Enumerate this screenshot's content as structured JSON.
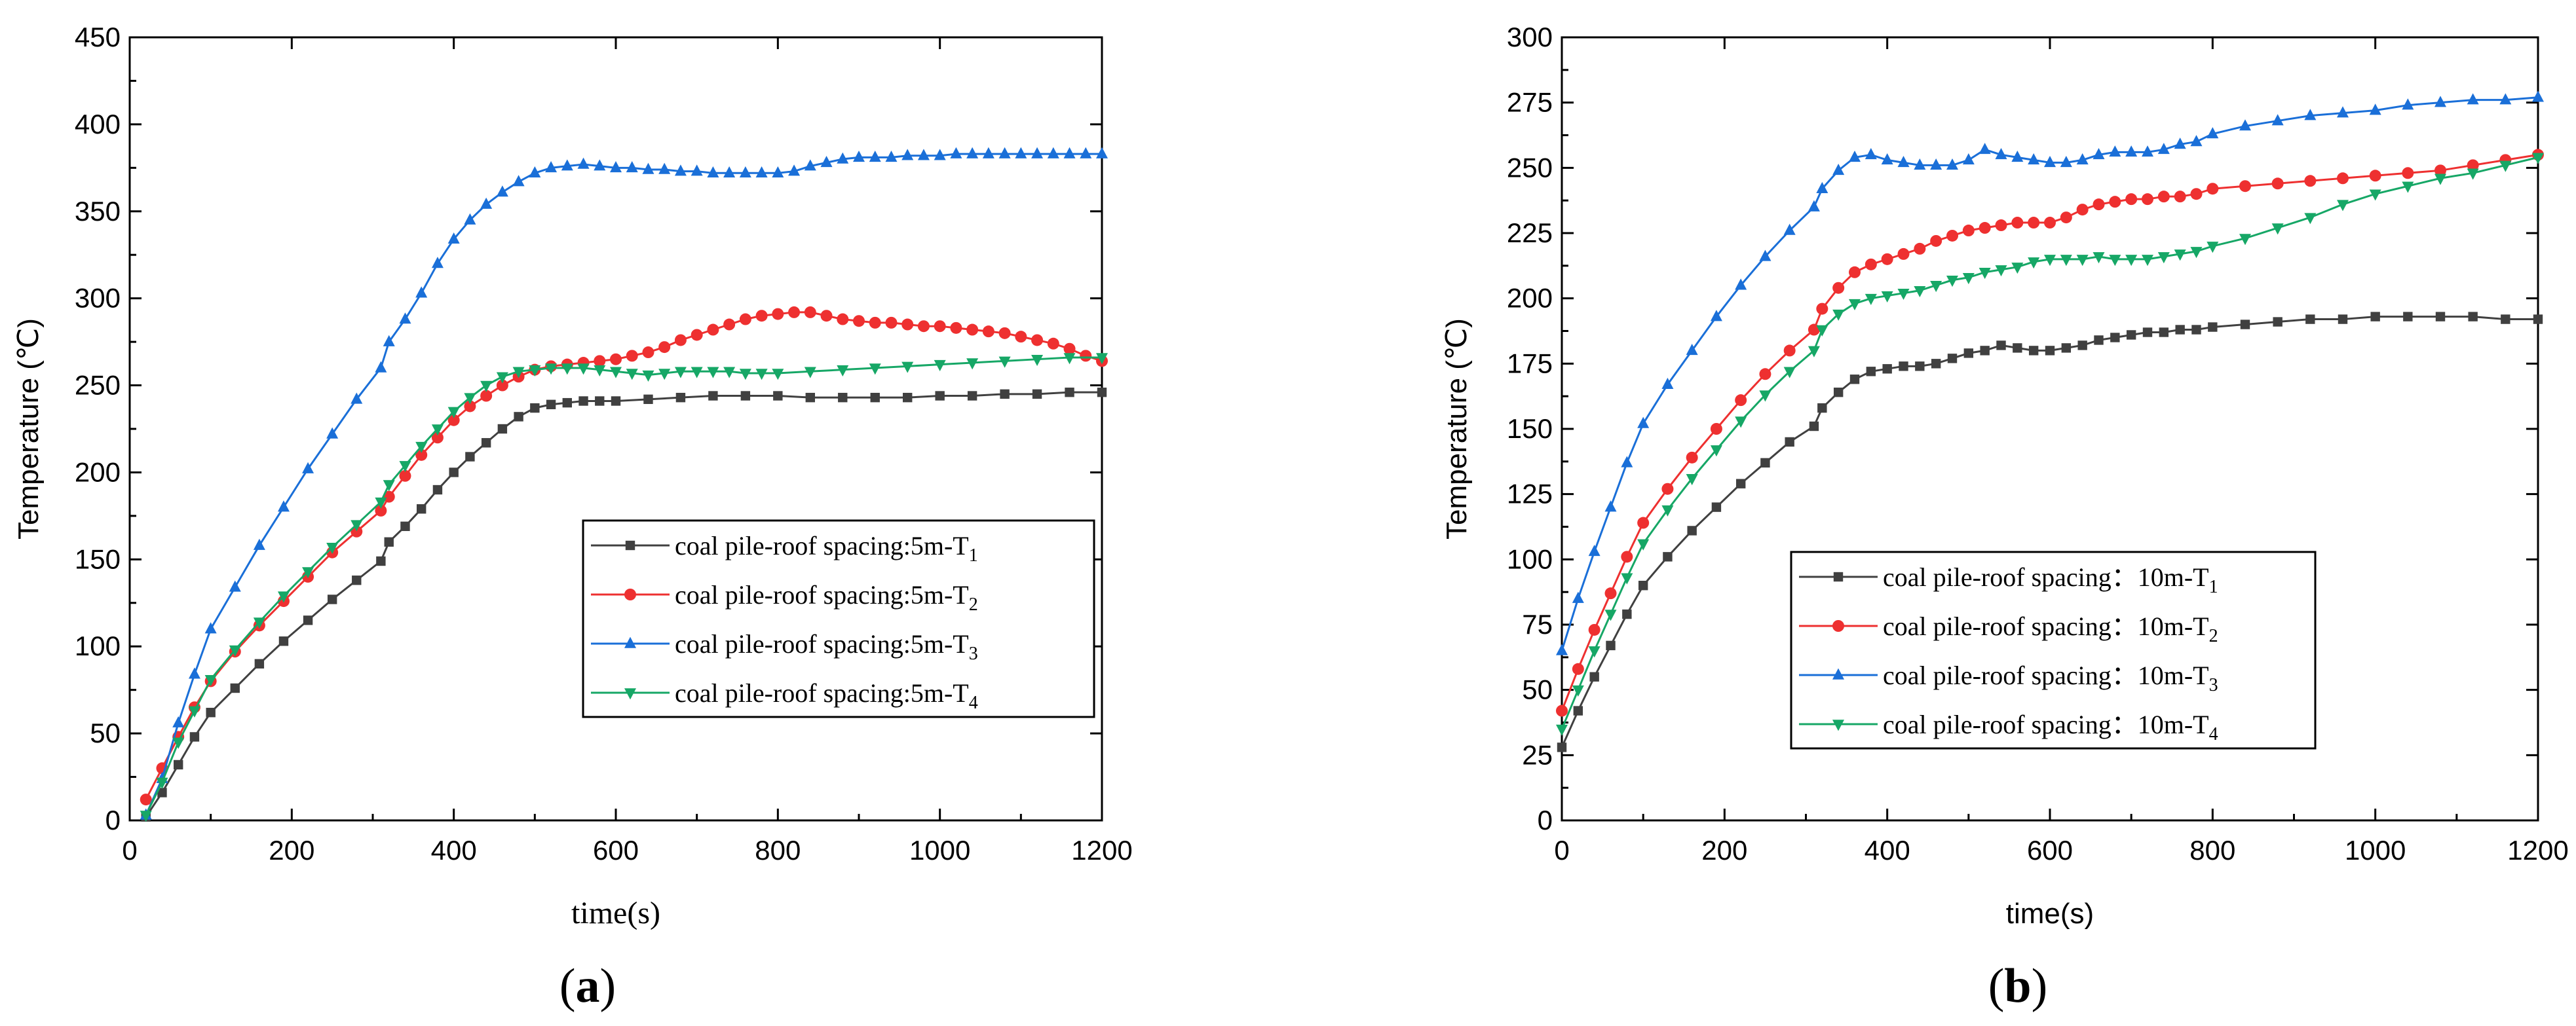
{
  "chart_data": [
    {
      "type": "line",
      "panel_label": "a",
      "xlabel": "time(s)",
      "ylabel": "Temperature (℃)",
      "xlim": [
        0,
        1200
      ],
      "ylim": [
        0,
        450
      ],
      "xticks": [
        0,
        200,
        400,
        600,
        800,
        1000,
        1200
      ],
      "yticks": [
        0,
        50,
        100,
        150,
        200,
        250,
        300,
        350,
        400,
        450
      ],
      "legend_position": "center-right",
      "series": [
        {
          "name": "coal pile-roof spacing:5m-T",
          "subscript": "1",
          "color": "#404040",
          "marker": "square",
          "x": [
            20,
            40,
            60,
            80,
            100,
            130,
            160,
            190,
            220,
            250,
            280,
            310,
            320,
            340,
            360,
            380,
            400,
            420,
            440,
            460,
            480,
            500,
            520,
            540,
            560,
            580,
            600,
            640,
            680,
            720,
            760,
            800,
            840,
            880,
            920,
            960,
            1000,
            1040,
            1080,
            1120,
            1160,
            1200
          ],
          "y": [
            2,
            16,
            32,
            48,
            62,
            76,
            90,
            103,
            115,
            127,
            138,
            149,
            160,
            169,
            179,
            190,
            200,
            209,
            217,
            225,
            232,
            237,
            239,
            240,
            241,
            241,
            241,
            242,
            243,
            244,
            244,
            244,
            243,
            243,
            243,
            243,
            244,
            244,
            245,
            245,
            246,
            246
          ]
        },
        {
          "name": "coal pile-roof spacing:5m-T",
          "subscript": "2",
          "color": "#ee3030",
          "marker": "circle",
          "x": [
            20,
            40,
            60,
            80,
            100,
            130,
            160,
            190,
            220,
            250,
            280,
            310,
            320,
            340,
            360,
            380,
            400,
            420,
            440,
            460,
            480,
            500,
            520,
            540,
            560,
            580,
            600,
            620,
            640,
            660,
            680,
            700,
            720,
            740,
            760,
            780,
            800,
            820,
            840,
            860,
            880,
            900,
            920,
            940,
            960,
            980,
            1000,
            1020,
            1040,
            1060,
            1080,
            1100,
            1120,
            1140,
            1160,
            1180,
            1200
          ],
          "y": [
            12,
            30,
            48,
            65,
            80,
            97,
            112,
            126,
            140,
            154,
            166,
            178,
            186,
            198,
            210,
            220,
            230,
            238,
            244,
            250,
            255,
            259,
            261,
            262,
            263,
            264,
            265,
            267,
            269,
            272,
            276,
            279,
            282,
            285,
            288,
            290,
            291,
            292,
            292,
            290,
            288,
            287,
            286,
            286,
            285,
            284,
            284,
            283,
            282,
            281,
            280,
            278,
            276,
            274,
            271,
            267,
            264
          ]
        },
        {
          "name": "coal pile-roof spacing:5m-T",
          "subscript": "3",
          "color": "#1a6fd8",
          "marker": "triangle-up",
          "x": [
            20,
            40,
            60,
            80,
            100,
            130,
            160,
            190,
            220,
            250,
            280,
            310,
            320,
            340,
            360,
            380,
            400,
            420,
            440,
            460,
            480,
            500,
            520,
            540,
            560,
            580,
            600,
            620,
            640,
            660,
            680,
            700,
            720,
            740,
            760,
            780,
            800,
            820,
            840,
            860,
            880,
            900,
            920,
            940,
            960,
            980,
            1000,
            1020,
            1040,
            1060,
            1080,
            1100,
            1120,
            1140,
            1160,
            1180,
            1200
          ],
          "y": [
            3,
            24,
            56,
            84,
            110,
            134,
            158,
            180,
            202,
            222,
            242,
            260,
            275,
            288,
            303,
            320,
            334,
            345,
            354,
            361,
            367,
            372,
            375,
            376,
            377,
            376,
            375,
            375,
            374,
            374,
            373,
            373,
            372,
            372,
            372,
            372,
            372,
            373,
            376,
            378,
            380,
            381,
            381,
            381,
            382,
            382,
            382,
            383,
            383,
            383,
            383,
            383,
            383,
            383,
            383,
            383,
            383
          ]
        },
        {
          "name": "coal pile-roof spacing:5m-T",
          "subscript": "4",
          "color": "#16a766",
          "marker": "triangle-down",
          "x": [
            20,
            40,
            60,
            80,
            100,
            130,
            160,
            190,
            220,
            250,
            280,
            310,
            320,
            340,
            360,
            380,
            400,
            420,
            440,
            460,
            480,
            500,
            520,
            540,
            560,
            580,
            600,
            620,
            640,
            660,
            680,
            700,
            720,
            740,
            760,
            780,
            800,
            840,
            880,
            920,
            960,
            1000,
            1040,
            1080,
            1120,
            1160,
            1200
          ],
          "y": [
            3,
            22,
            45,
            63,
            81,
            98,
            114,
            129,
            143,
            157,
            170,
            183,
            193,
            204,
            215,
            225,
            235,
            243,
            250,
            255,
            258,
            259,
            260,
            260,
            260,
            259,
            258,
            257,
            256,
            257,
            258,
            258,
            258,
            258,
            257,
            257,
            257,
            258,
            259,
            260,
            261,
            262,
            263,
            264,
            265,
            266,
            266
          ]
        }
      ]
    },
    {
      "type": "line",
      "panel_label": "b",
      "xlabel": "time(s)",
      "ylabel": "Temperature (℃)",
      "xlim": [
        0,
        1200
      ],
      "ylim": [
        0,
        300
      ],
      "xticks": [
        0,
        200,
        400,
        600,
        800,
        1000,
        1200
      ],
      "yticks": [
        0,
        25,
        50,
        75,
        100,
        125,
        150,
        175,
        200,
        225,
        250,
        275,
        300
      ],
      "legend_position": "center",
      "series": [
        {
          "name": "coal pile-roof spacing：10m-T",
          "subscript": "1",
          "color": "#404040",
          "marker": "square",
          "x": [
            0,
            20,
            40,
            60,
            80,
            100,
            130,
            160,
            190,
            220,
            250,
            280,
            310,
            320,
            340,
            360,
            380,
            400,
            420,
            440,
            460,
            480,
            500,
            520,
            540,
            560,
            580,
            600,
            620,
            640,
            660,
            680,
            700,
            720,
            740,
            760,
            780,
            800,
            840,
            880,
            920,
            960,
            1000,
            1040,
            1080,
            1120,
            1160,
            1200
          ],
          "y": [
            28,
            42,
            55,
            67,
            79,
            90,
            101,
            111,
            120,
            129,
            137,
            145,
            151,
            158,
            164,
            169,
            172,
            173,
            174,
            174,
            175,
            177,
            179,
            180,
            182,
            181,
            180,
            180,
            181,
            182,
            184,
            185,
            186,
            187,
            187,
            188,
            188,
            189,
            190,
            191,
            192,
            192,
            193,
            193,
            193,
            193,
            192,
            192
          ]
        },
        {
          "name": "coal pile-roof spacing：10m-T",
          "subscript": "2",
          "color": "#ee3030",
          "marker": "circle",
          "x": [
            0,
            20,
            40,
            60,
            80,
            100,
            130,
            160,
            190,
            220,
            250,
            280,
            310,
            320,
            340,
            360,
            380,
            400,
            420,
            440,
            460,
            480,
            500,
            520,
            540,
            560,
            580,
            600,
            620,
            640,
            660,
            680,
            700,
            720,
            740,
            760,
            780,
            800,
            840,
            880,
            920,
            960,
            1000,
            1040,
            1080,
            1120,
            1160,
            1200
          ],
          "y": [
            42,
            58,
            73,
            87,
            101,
            114,
            127,
            139,
            150,
            161,
            171,
            180,
            188,
            196,
            204,
            210,
            213,
            215,
            217,
            219,
            222,
            224,
            226,
            227,
            228,
            229,
            229,
            229,
            231,
            234,
            236,
            237,
            238,
            238,
            239,
            239,
            240,
            242,
            243,
            244,
            245,
            246,
            247,
            248,
            249,
            251,
            253,
            255
          ]
        },
        {
          "name": "coal pile-roof spacing：10m-T",
          "subscript": "3",
          "color": "#1a6fd8",
          "marker": "triangle-up",
          "x": [
            0,
            20,
            40,
            60,
            80,
            100,
            130,
            160,
            190,
            220,
            250,
            280,
            310,
            320,
            340,
            360,
            380,
            400,
            420,
            440,
            460,
            480,
            500,
            520,
            540,
            560,
            580,
            600,
            620,
            640,
            660,
            680,
            700,
            720,
            740,
            760,
            780,
            800,
            840,
            880,
            920,
            960,
            1000,
            1040,
            1080,
            1120,
            1160,
            1200
          ],
          "y": [
            65,
            85,
            103,
            120,
            137,
            152,
            167,
            180,
            193,
            205,
            216,
            226,
            235,
            242,
            249,
            254,
            255,
            253,
            252,
            251,
            251,
            251,
            253,
            257,
            255,
            254,
            253,
            252,
            252,
            253,
            255,
            256,
            256,
            256,
            257,
            259,
            260,
            263,
            266,
            268,
            270,
            271,
            272,
            274,
            275,
            276,
            276,
            277
          ]
        },
        {
          "name": "coal pile-roof spacing：10m-T",
          "subscript": "4",
          "color": "#16a766",
          "marker": "triangle-down",
          "x": [
            0,
            20,
            40,
            60,
            80,
            100,
            130,
            160,
            190,
            220,
            250,
            280,
            310,
            320,
            340,
            360,
            380,
            400,
            420,
            440,
            460,
            480,
            500,
            520,
            540,
            560,
            580,
            600,
            620,
            640,
            660,
            680,
            700,
            720,
            740,
            760,
            780,
            800,
            840,
            880,
            920,
            960,
            1000,
            1040,
            1080,
            1120,
            1160,
            1200
          ],
          "y": [
            35,
            50,
            65,
            79,
            93,
            106,
            119,
            131,
            142,
            153,
            163,
            172,
            180,
            188,
            194,
            198,
            200,
            201,
            202,
            203,
            205,
            207,
            208,
            210,
            211,
            212,
            214,
            215,
            215,
            215,
            216,
            215,
            215,
            215,
            216,
            217,
            218,
            220,
            223,
            227,
            231,
            236,
            240,
            243,
            246,
            248,
            251,
            254
          ]
        }
      ]
    }
  ]
}
